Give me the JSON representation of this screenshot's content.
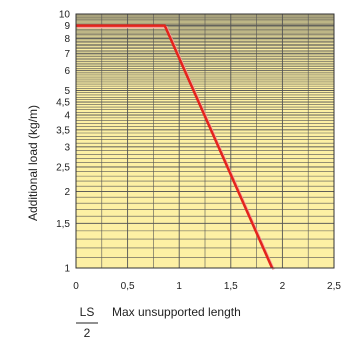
{
  "chart_data": {
    "type": "line",
    "ylabel": "Additional load (kg/m)",
    "xlabel": "Max unsupported length",
    "xlabel_fraction": {
      "numerator": "LS",
      "denominator": "2"
    },
    "xlim": [
      0,
      2.5
    ],
    "ylim": [
      1,
      10
    ],
    "y_scale": "log",
    "grid": true,
    "legend": "none",
    "x_ticks": [
      {
        "value": 0,
        "label": "0"
      },
      {
        "value": 0.5,
        "label": "0,5"
      },
      {
        "value": 1,
        "label": "1"
      },
      {
        "value": 1.5,
        "label": "1,5"
      },
      {
        "value": 2,
        "label": "2"
      },
      {
        "value": 2.5,
        "label": "2,5"
      }
    ],
    "y_ticks": [
      {
        "value": 1,
        "label": "1"
      },
      {
        "value": 1.5,
        "label": "1,5"
      },
      {
        "value": 2,
        "label": "2"
      },
      {
        "value": 2.5,
        "label": "2,5"
      },
      {
        "value": 3,
        "label": "3"
      },
      {
        "value": 3.5,
        "label": "3,5"
      },
      {
        "value": 4,
        "label": "4"
      },
      {
        "value": 4.5,
        "label": "4,5"
      },
      {
        "value": 5,
        "label": "5"
      },
      {
        "value": 6,
        "label": "6"
      },
      {
        "value": 7,
        "label": "7"
      },
      {
        "value": 8,
        "label": "8"
      },
      {
        "value": 9,
        "label": "9"
      },
      {
        "value": 10,
        "label": "10"
      }
    ],
    "series": [
      {
        "x": [
          0,
          0.86,
          1.9
        ],
        "y": [
          9,
          9,
          1
        ]
      }
    ],
    "colors": {
      "plot_background": "#fdf0a4",
      "grid": "#555555",
      "frame": "#333333",
      "line": "#e4241c",
      "line_shadow": "#f4a0a0"
    }
  }
}
